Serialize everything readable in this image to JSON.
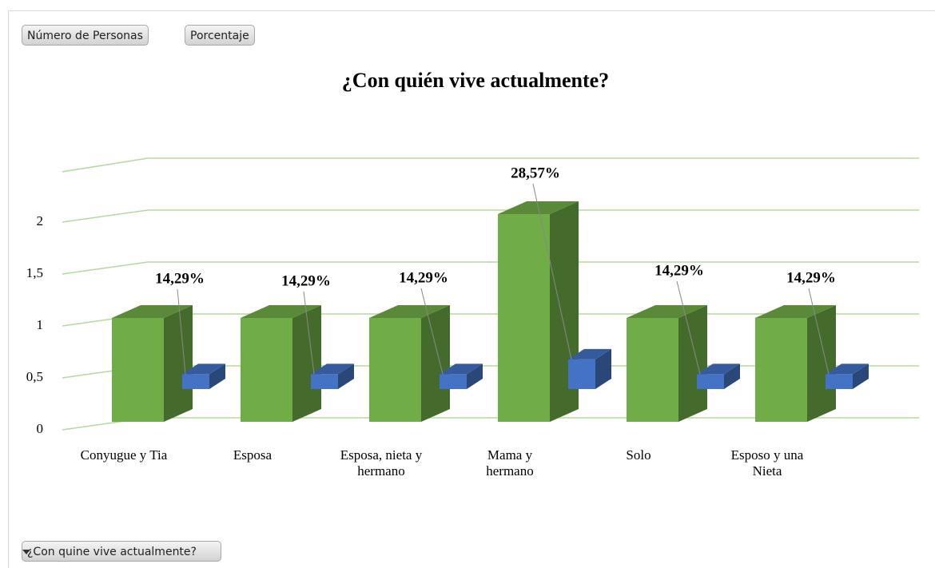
{
  "chart_data": {
    "type": "bar3d",
    "title": "¿Con quién vive actualmente?",
    "categories": [
      "Conyugue y Tia",
      "Esposa",
      "Esposa, nieta y hermano",
      "Mama y hermano",
      "Solo",
      "Esposo y una Nieta"
    ],
    "series": [
      {
        "name": "Número de Personas",
        "color": "#70ad47",
        "values": [
          1,
          1,
          1,
          2,
          1,
          1
        ]
      },
      {
        "name": "Porcentaje",
        "color": "#4472c4",
        "values": [
          0.1429,
          0.1429,
          0.1429,
          0.2857,
          0.1429,
          0.1429
        ],
        "value_labels": [
          "14,29%",
          "14,29%",
          "14,29%",
          "28,57%",
          "14,29%",
          "14,29%"
        ]
      }
    ],
    "ylim": [
      0,
      2.5
    ],
    "yticks": [
      0,
      {
        "value": 0.5,
        "label": "0,5"
      },
      1,
      {
        "value": 1.5,
        "label": "1,5"
      },
      2
    ],
    "grid": true,
    "filter_button": "¿Con quine vive actualmente?"
  }
}
